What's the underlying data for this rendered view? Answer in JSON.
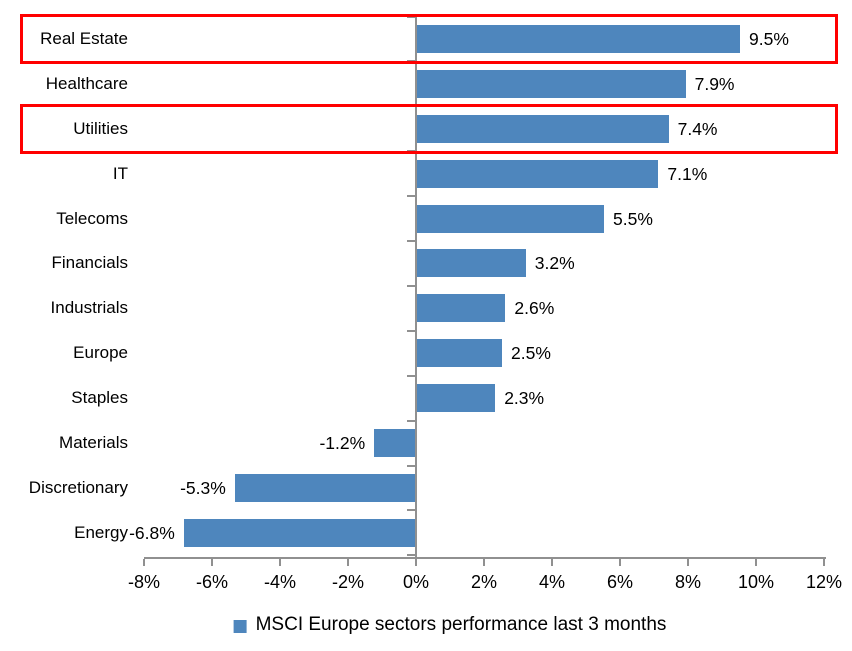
{
  "chart_data": {
    "type": "bar",
    "orientation": "horizontal",
    "title": "",
    "categories": [
      "Real Estate",
      "Healthcare",
      "Utilities",
      "IT",
      "Telecoms",
      "Financials",
      "Industrials",
      "Europe",
      "Staples",
      "Materials",
      "Discretionary",
      "Energy"
    ],
    "values": [
      9.5,
      7.9,
      7.4,
      7.1,
      5.5,
      3.2,
      2.6,
      2.5,
      2.3,
      -1.2,
      -5.3,
      -6.8
    ],
    "data_labels": [
      "9.5%",
      "7.9%",
      "7.4%",
      "7.1%",
      "5.5%",
      "3.2%",
      "2.6%",
      "2.5%",
      "2.3%",
      "-1.2%",
      "-5.3%",
      "-6.8%"
    ],
    "x_ticks": [
      "-8%",
      "-6%",
      "-4%",
      "-2%",
      "0%",
      "2%",
      "4%",
      "6%",
      "8%",
      "10%",
      "12%"
    ],
    "x_tick_values": [
      -8,
      -6,
      -4,
      -2,
      0,
      2,
      4,
      6,
      8,
      10,
      12
    ],
    "xlim": [
      -8,
      12
    ],
    "grid": "off",
    "legend": {
      "label": "MSCI Europe sectors performance last 3 months",
      "position": "bottom"
    },
    "bar_color": "#4E86BD",
    "axis_color": "#909090",
    "highlight_color": "#FF0000",
    "highlighted_categories": [
      "Real Estate",
      "Utilities"
    ]
  }
}
